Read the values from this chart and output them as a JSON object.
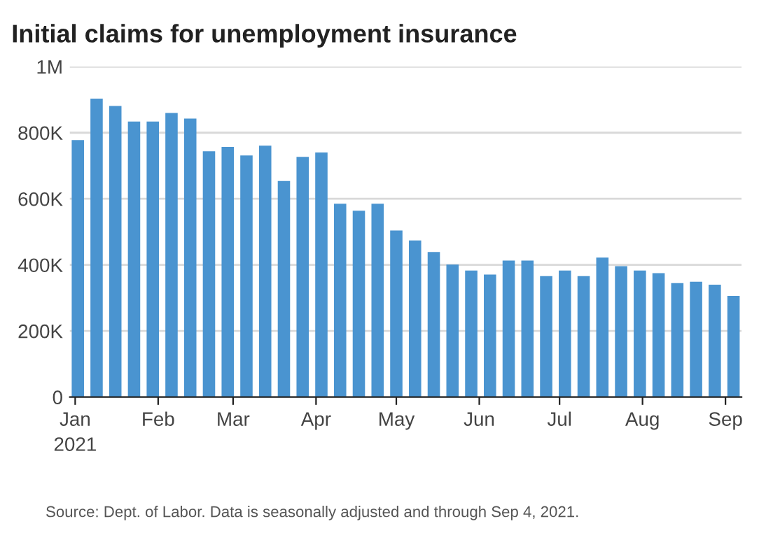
{
  "chart_data": {
    "type": "bar",
    "title": "Initial claims for unemployment insurance",
    "x": [
      "2021-01-02",
      "2021-01-09",
      "2021-01-16",
      "2021-01-23",
      "2021-01-30",
      "2021-02-06",
      "2021-02-13",
      "2021-02-20",
      "2021-02-27",
      "2021-03-06",
      "2021-03-13",
      "2021-03-20",
      "2021-03-27",
      "2021-04-03",
      "2021-04-10",
      "2021-04-17",
      "2021-04-24",
      "2021-05-01",
      "2021-05-08",
      "2021-05-15",
      "2021-05-22",
      "2021-05-29",
      "2021-06-05",
      "2021-06-12",
      "2021-06-19",
      "2021-06-26",
      "2021-07-03",
      "2021-07-10",
      "2021-07-17",
      "2021-07-24",
      "2021-07-31",
      "2021-08-07",
      "2021-08-14",
      "2021-08-21",
      "2021-08-28",
      "2021-09-04"
    ],
    "values": [
      778000,
      903000,
      881000,
      834000,
      834000,
      860000,
      843000,
      744000,
      757000,
      731000,
      761000,
      654000,
      727000,
      740000,
      585000,
      564000,
      585000,
      504000,
      474000,
      439000,
      401000,
      383000,
      371000,
      413000,
      413000,
      366000,
      383000,
      366000,
      422000,
      396000,
      383000,
      375000,
      345000,
      349000,
      340000,
      306000
    ],
    "color": "#4a94d0",
    "xlim": [
      "2020-12-30",
      "2021-09-07"
    ],
    "xticks": [
      {
        "value": "2021-01-01",
        "label": "Jan\n2021"
      },
      {
        "value": "2021-02-01",
        "label": "Feb"
      },
      {
        "value": "2021-03-01",
        "label": "Mar"
      },
      {
        "value": "2021-04-01",
        "label": "Apr"
      },
      {
        "value": "2021-05-01",
        "label": "May"
      },
      {
        "value": "2021-06-01",
        "label": "Jun"
      },
      {
        "value": "2021-07-01",
        "label": "Jul"
      },
      {
        "value": "2021-08-01",
        "label": "Aug"
      },
      {
        "value": "2021-09-01",
        "label": "Sep"
      }
    ],
    "ylim": [
      0,
      1000000
    ],
    "yticks": [
      0,
      {
        "value": 200000,
        "label": "200K"
      },
      {
        "value": 400000,
        "label": "400K"
      },
      {
        "value": 600000,
        "label": "600K"
      },
      {
        "value": 800000,
        "label": "800K"
      },
      {
        "value": 1000000,
        "label": "1M"
      }
    ],
    "grid": "y",
    "legend": false,
    "annotations": [
      "Source: Dept. of Labor. Data is seasonally adjusted and through Sep 4, 2021."
    ]
  }
}
